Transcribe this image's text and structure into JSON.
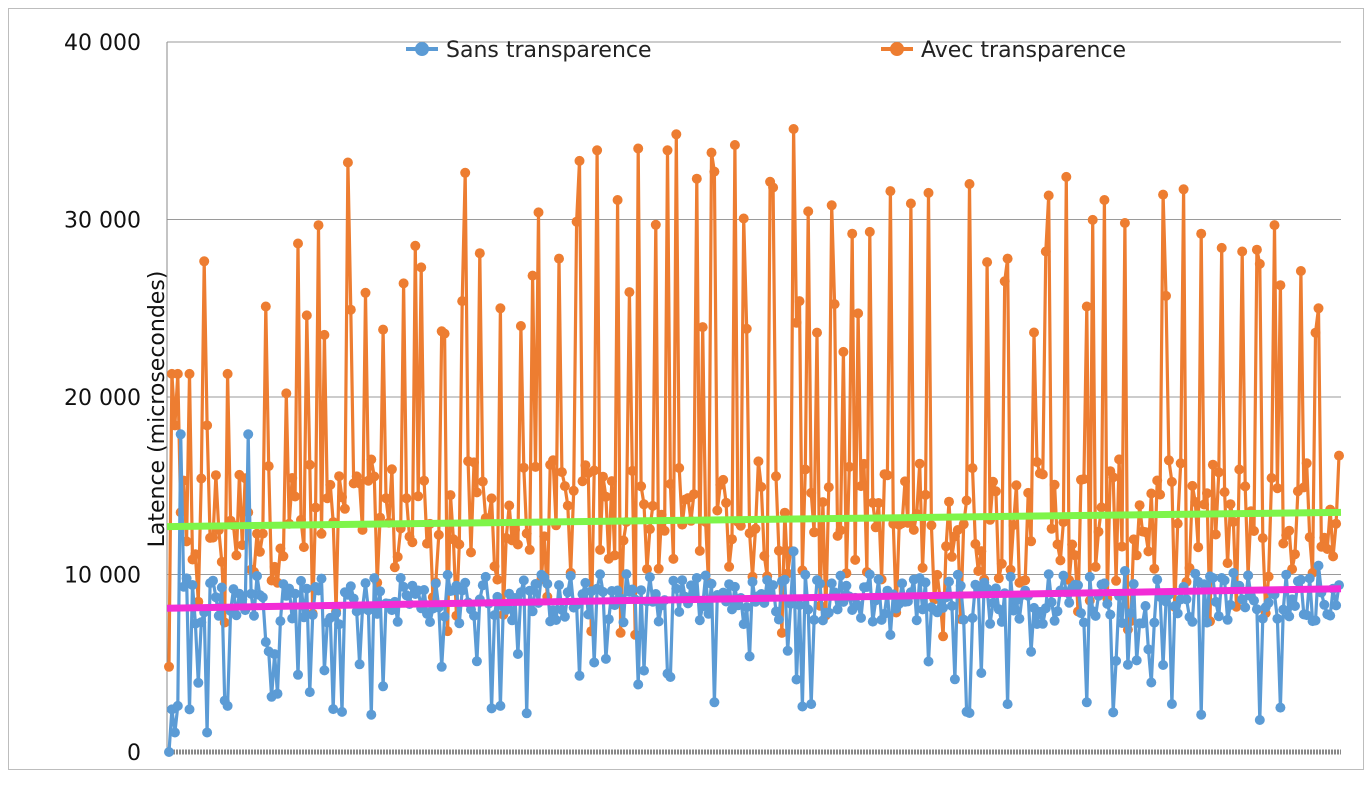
{
  "chart_data": {
    "type": "line",
    "ylabel": "Latence (microsecondes)",
    "xlabel": "",
    "ylim": [
      0,
      40000
    ],
    "y_ticks": [
      0,
      10000,
      20000,
      30000,
      40000
    ],
    "y_tick_labels": [
      "0",
      "10 000",
      "20 000",
      "30 000",
      "40 000"
    ],
    "grid": "horizontal",
    "legend_position": "top",
    "n_points": 400,
    "series": [
      {
        "name": "Sans transparence",
        "color": "#5b9bd5",
        "sample_values": [
          0,
          2400,
          1100,
          2600,
          17900,
          6200,
          8800,
          9200,
          4600,
          9000,
          8700,
          3700,
          9300,
          8100,
          4800,
          9100,
          8600,
          2600,
          9000,
          8400,
          9400,
          4300,
          9200,
          9100,
          3800,
          8900,
          9200,
          9800,
          2800,
          9300,
          6000,
          9400,
          11300,
          2700,
          9500,
          8000,
          10000,
          6600,
          9000,
          5100,
          9600,
          2200,
          9200,
          2700,
          8800,
          8100,
          9000,
          2800,
          9500,
          10200,
          2400,
          4900,
          9300,
          2100,
          9800,
          8600,
          1800,
          2500,
          9700,
          10500,
          9400
        ],
        "trend_start": 8100,
        "trend_end": 9200,
        "trend_color": "#f22cd6"
      },
      {
        "name": "Avec transparence",
        "color": "#ed7d31",
        "sample_values": [
          4800,
          21300,
          18400,
          21300,
          13500,
          25100,
          20200,
          24600,
          23500,
          13700,
          22800,
          23800,
          26400,
          27300,
          23700,
          25400,
          28100,
          25000,
          24000,
          30400,
          27800,
          33300,
          33900,
          31100,
          34000,
          29700,
          34800,
          32300,
          32700,
          34200,
          35200,
          31800,
          35100,
          14600,
          30800,
          29200,
          29300,
          31600,
          30900,
          31500,
          14100,
          32000,
          27600,
          27800,
          14600,
          28200,
          32400,
          25100,
          31100,
          29800,
          33300,
          31400,
          31700,
          29200,
          28400,
          28200,
          27500,
          26300,
          27100,
          25000,
          16700
        ],
        "trend_start": 12700,
        "trend_end": 13500,
        "trend_color": "#7ef54a"
      }
    ]
  }
}
